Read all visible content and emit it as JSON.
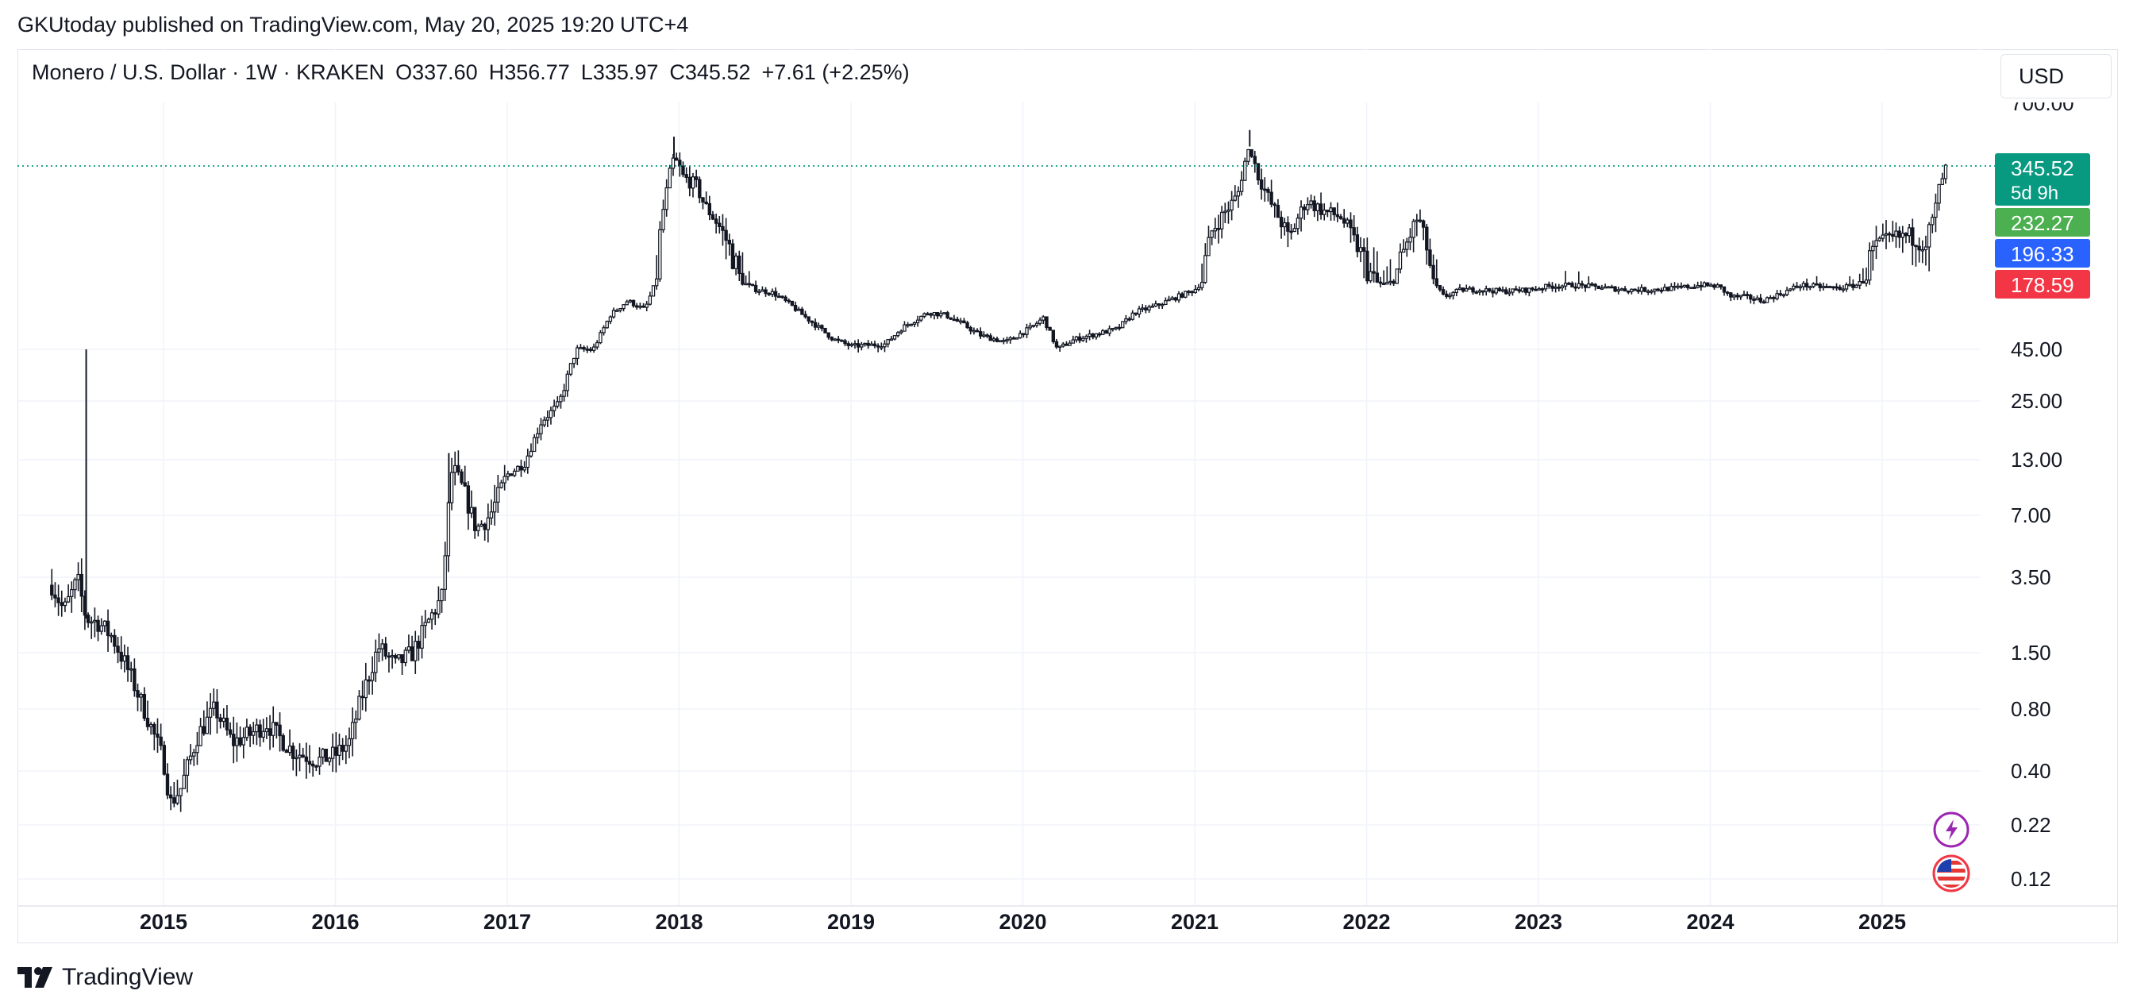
{
  "publisher": "GKUtoday published on TradingView.com, May 20, 2025 19:20 UTC+4",
  "legend": {
    "symbol": "Monero / U.S. Dollar · 1W · KRAKEN",
    "open": "O337.60",
    "high": "H356.77",
    "low": "L335.97",
    "close": "C345.52",
    "change": "+7.61 (+2.25%)"
  },
  "currency": "USD",
  "brand": "TradingView",
  "colors": {
    "candles": "#131722",
    "last_price_line": "#089981",
    "badge_last": "#089981",
    "badge_green": "#4caf50",
    "badge_blue": "#2962ff",
    "badge_red": "#f23645"
  },
  "icons": [
    "lightning-icon",
    "us-flag-icon",
    "tradingview-logo-icon"
  ],
  "chart_data": {
    "type": "candlestick",
    "interval": "1W",
    "y_scale": "log",
    "grid": true,
    "y_tick_labels": [
      "700.00",
      "45.00",
      "25.00",
      "13.00",
      "7.00",
      "3.50",
      "1.50",
      "0.80",
      "0.40",
      "0.22",
      "0.12"
    ],
    "x_tick_labels": [
      "2015",
      "2016",
      "2017",
      "2018",
      "2019",
      "2020",
      "2021",
      "2022",
      "2023",
      "2024",
      "2025"
    ],
    "price_badges": [
      {
        "value": "345.52",
        "sub": "5d 9h",
        "color": "#089981"
      },
      {
        "value": "232.27",
        "color": "#4caf50"
      },
      {
        "value": "196.33",
        "color": "#2962ff"
      },
      {
        "value": "178.59",
        "color": "#f23645"
      }
    ],
    "close_series": [
      [
        2014.35,
        3.2
      ],
      [
        2014.42,
        2.4
      ],
      [
        2014.5,
        3.4
      ],
      [
        2014.55,
        2.2
      ],
      [
        2014.62,
        2.1
      ],
      [
        2014.7,
        1.8
      ],
      [
        2014.8,
        1.2
      ],
      [
        2014.9,
        0.75
      ],
      [
        2015.0,
        0.45
      ],
      [
        2015.04,
        0.28
      ],
      [
        2015.1,
        0.33
      ],
      [
        2015.2,
        0.6
      ],
      [
        2015.3,
        0.8
      ],
      [
        2015.4,
        0.55
      ],
      [
        2015.5,
        0.6
      ],
      [
        2015.6,
        0.68
      ],
      [
        2015.75,
        0.5
      ],
      [
        2015.9,
        0.45
      ],
      [
        2016.0,
        0.48
      ],
      [
        2016.08,
        0.55
      ],
      [
        2016.15,
        0.9
      ],
      [
        2016.25,
        1.6
      ],
      [
        2016.35,
        1.3
      ],
      [
        2016.45,
        1.5
      ],
      [
        2016.55,
        2.2
      ],
      [
        2016.62,
        2.8
      ],
      [
        2016.66,
        8.0
      ],
      [
        2016.68,
        12.0
      ],
      [
        2016.75,
        9.0
      ],
      [
        2016.82,
        6.0
      ],
      [
        2016.9,
        7.0
      ],
      [
        2017.0,
        11.0
      ],
      [
        2017.1,
        12.5
      ],
      [
        2017.2,
        20.0
      ],
      [
        2017.3,
        24.0
      ],
      [
        2017.4,
        45.0
      ],
      [
        2017.5,
        45.0
      ],
      [
        2017.6,
        90.0
      ],
      [
        2017.7,
        120.0
      ],
      [
        2017.8,
        100.0
      ],
      [
        2017.9,
        240.0
      ],
      [
        2017.97,
        380.0
      ],
      [
        2018.02,
        320.0
      ],
      [
        2018.1,
        300.0
      ],
      [
        2018.15,
        260.0
      ],
      [
        2018.25,
        220.0
      ],
      [
        2018.35,
        180.0
      ],
      [
        2018.45,
        150.0
      ],
      [
        2018.55,
        140.0
      ],
      [
        2018.65,
        110.0
      ],
      [
        2018.72,
        90.0
      ],
      [
        2018.9,
        55.0
      ],
      [
        2019.0,
        48.0
      ],
      [
        2019.2,
        50.0
      ],
      [
        2019.3,
        70.0
      ],
      [
        2019.45,
        95.0
      ],
      [
        2019.55,
        90.0
      ],
      [
        2019.65,
        75.0
      ],
      [
        2019.75,
        60.0
      ],
      [
        2019.9,
        52.0
      ],
      [
        2020.05,
        70.0
      ],
      [
        2020.12,
        85.0
      ],
      [
        2020.2,
        45.0
      ],
      [
        2020.3,
        55.0
      ],
      [
        2020.4,
        60.0
      ],
      [
        2020.55,
        68.0
      ],
      [
        2020.65,
        95.0
      ],
      [
        2020.75,
        105.0
      ],
      [
        2020.9,
        130.0
      ],
      [
        2021.0,
        150.0
      ],
      [
        2021.1,
        220.0
      ],
      [
        2021.25,
        280.0
      ],
      [
        2021.32,
        430.0
      ],
      [
        2021.36,
        330.0
      ],
      [
        2021.45,
        260.0
      ],
      [
        2021.55,
        210.0
      ],
      [
        2021.65,
        270.0
      ],
      [
        2021.75,
        250.0
      ],
      [
        2021.85,
        240.0
      ],
      [
        2021.95,
        200.0
      ],
      [
        2022.1,
        165.0
      ],
      [
        2022.2,
        190.0
      ],
      [
        2022.3,
        240.0
      ],
      [
        2022.38,
        180.0
      ],
      [
        2022.45,
        130.0
      ],
      [
        2022.55,
        150.0
      ],
      [
        2022.65,
        150.0
      ],
      [
        2022.8,
        145.0
      ],
      [
        2022.95,
        150.0
      ],
      [
        2023.05,
        160.0
      ],
      [
        2023.2,
        165.0
      ],
      [
        2023.35,
        158.0
      ],
      [
        2023.5,
        150.0
      ],
      [
        2023.65,
        150.0
      ],
      [
        2023.8,
        155.0
      ],
      [
        2023.95,
        165.0
      ],
      [
        2024.05,
        160.0
      ],
      [
        2024.12,
        130.0
      ],
      [
        2024.2,
        130.0
      ],
      [
        2024.3,
        120.0
      ],
      [
        2024.42,
        140.0
      ],
      [
        2024.52,
        165.0
      ],
      [
        2024.62,
        160.0
      ],
      [
        2024.75,
        155.0
      ],
      [
        2024.85,
        165.0
      ],
      [
        2024.95,
        200.0
      ],
      [
        2025.05,
        210.0
      ],
      [
        2025.15,
        215.0
      ],
      [
        2025.25,
        205.0
      ],
      [
        2025.3,
        240.0
      ],
      [
        2025.34,
        310.0
      ],
      [
        2025.38,
        345.52
      ]
    ],
    "spikes": [
      [
        2014.55,
        45.0
      ],
      [
        2016.66,
        14.0
      ],
      [
        2017.97,
        480.0
      ],
      [
        2021.32,
        518.0
      ]
    ],
    "last_price": 345.52
  }
}
